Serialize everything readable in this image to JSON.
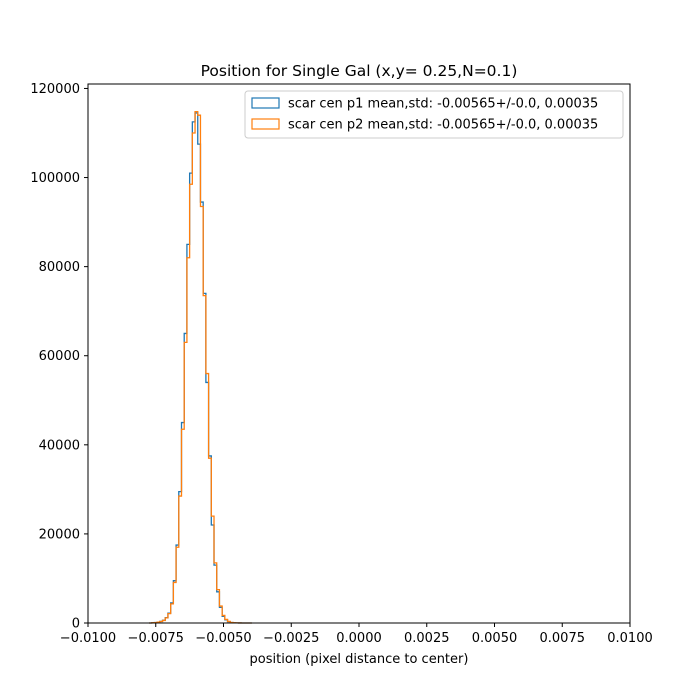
{
  "chart_data": {
    "type": "step-histogram",
    "title": "Position for Single Gal (x,y= 0.25,N=0.1)",
    "xlabel": "position (pixel distance to center)",
    "ylabel": "",
    "xlim": [
      -0.01,
      0.01
    ],
    "ylim": [
      0,
      121000
    ],
    "x_ticks": [
      -0.01,
      -0.0075,
      -0.005,
      -0.0025,
      0.0,
      0.0025,
      0.005,
      0.0075,
      0.01
    ],
    "x_tick_labels": [
      "−0.0100",
      "−0.0075",
      "−0.0050",
      "−0.0025",
      "0.0000",
      "0.0025",
      "0.0050",
      "0.0075",
      "0.0100"
    ],
    "y_ticks": [
      0,
      20000,
      40000,
      60000,
      80000,
      100000,
      120000
    ],
    "y_tick_labels": [
      "0",
      "20000",
      "40000",
      "60000",
      "80000",
      "100000",
      "120000"
    ],
    "grid": false,
    "legend_position": "top-right",
    "bin_edges": [
      -0.00775,
      -0.00765,
      -0.00755,
      -0.00745,
      -0.00735,
      -0.00725,
      -0.00715,
      -0.00705,
      -0.00695,
      -0.00685,
      -0.00675,
      -0.00665,
      -0.00655,
      -0.00645,
      -0.00635,
      -0.00625,
      -0.00615,
      -0.00605,
      -0.00595,
      -0.00585,
      -0.00575,
      -0.00565,
      -0.00555,
      -0.00545,
      -0.00535,
      -0.00525,
      -0.00515,
      -0.00505,
      -0.00495,
      -0.00485,
      -0.00475,
      -0.00465,
      -0.00455,
      -0.00445,
      -0.00435,
      -0.00425,
      -0.00415,
      -0.00405,
      -0.00395
    ],
    "series": [
      {
        "name": "scar cen p1 mean,std: -0.00565+/-0.0, 0.00035",
        "color": "#1f77b4",
        "counts": [
          0,
          50,
          100,
          200,
          350,
          600,
          1200,
          2200,
          4500,
          9500,
          17500,
          29500,
          45000,
          65000,
          85000,
          101000,
          112500,
          114500,
          107500,
          94500,
          74000,
          54000,
          37500,
          22000,
          13000,
          7000,
          3500,
          1500,
          700,
          300,
          100,
          50,
          20,
          10,
          0,
          0,
          0,
          0
        ]
      },
      {
        "name": "scar cen p2 mean,std: -0.00565+/-0.0, 0.00035",
        "color": "#ff7f0e",
        "counts": [
          0,
          40,
          90,
          180,
          330,
          580,
          1150,
          2100,
          4300,
          9100,
          17000,
          28500,
          43500,
          63000,
          82000,
          98500,
          110000,
          114800,
          114000,
          93500,
          73500,
          56000,
          37000,
          24000,
          13500,
          7500,
          3800,
          1700,
          800,
          350,
          120,
          60,
          25,
          10,
          0,
          0,
          0,
          0
        ]
      }
    ]
  }
}
